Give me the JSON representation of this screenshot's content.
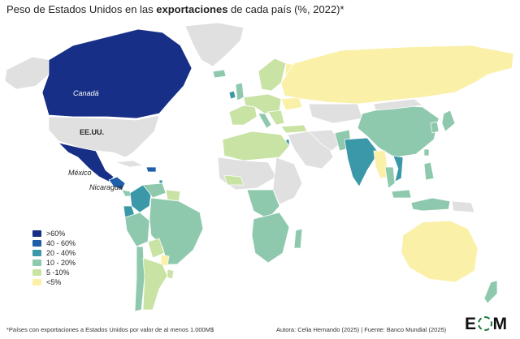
{
  "title": {
    "before": "Peso de Estados Unidos en las ",
    "bold": "exportaciones",
    "after": " de cada país (%, 2022)*"
  },
  "colors": {
    "c60": "#172f86",
    "c40": "#1f5ea8",
    "c20": "#3b98a8",
    "c10": "#8ec9ad",
    "c5": "#c8e3a4",
    "c0": "#faf0a8",
    "nodata": "#e0e0e0"
  },
  "map_labels": {
    "canada": "Canadá",
    "usa": "EE.UU.",
    "mexico": "México",
    "nicaragua": "Nicaragua"
  },
  "legend": [
    {
      "label": ">60%",
      "color": "#172f86"
    },
    {
      "label": "40 - 60%",
      "color": "#1f5ea8"
    },
    {
      "label": "20 - 40%",
      "color": "#3b98a8"
    },
    {
      "label": "10 - 20%",
      "color": "#8ec9ad"
    },
    {
      "label": "5 -10%",
      "color": "#c8e3a4"
    },
    {
      "label": "<5%",
      "color": "#faf0a8"
    }
  ],
  "footnote": "*Países con exportaciones a Estados Unidos por valor de al menos 1.000M$",
  "credit": "Autora: Celia Hernando (2025) | Fuente: Banco Mundial  (2025)",
  "logo": {
    "left": "E",
    "right": "M"
  },
  "countries": [
    {
      "name": "Canadá",
      "class": "c60"
    },
    {
      "name": "Estados Unidos",
      "class": "nodata"
    },
    {
      "name": "México",
      "class": "c60"
    },
    {
      "name": "Nicaragua",
      "class": "c40"
    },
    {
      "name": "Colombia",
      "class": "c20"
    },
    {
      "name": "Brasil",
      "class": "c10"
    },
    {
      "name": "Argentina",
      "class": "c5"
    },
    {
      "name": "Chile",
      "class": "c10"
    },
    {
      "name": "India",
      "class": "c20"
    },
    {
      "name": "Vietnam",
      "class": "c20"
    },
    {
      "name": "China",
      "class": "c10"
    },
    {
      "name": "Australia",
      "class": "c0"
    },
    {
      "name": "Rusia",
      "class": "c0"
    },
    {
      "name": "Irlanda",
      "class": "c20"
    },
    {
      "name": "Israel",
      "class": "c20"
    }
  ]
}
